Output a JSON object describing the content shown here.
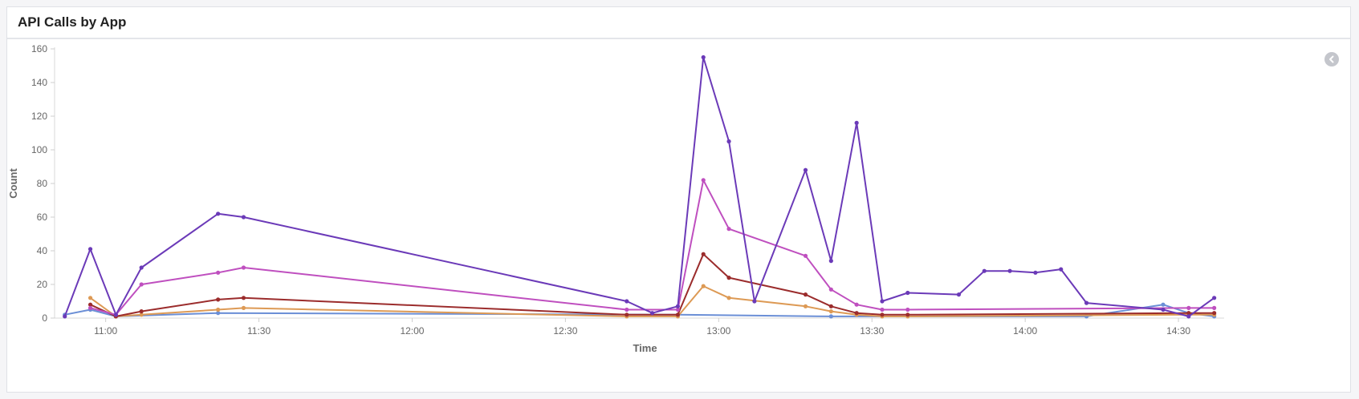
{
  "panel": {
    "title": "API Calls by App"
  },
  "icons": {
    "collapse": "chevron-left-icon"
  },
  "chart_data": {
    "type": "line",
    "xlabel": "Time",
    "ylabel": "Count",
    "ylim": [
      0,
      160
    ],
    "yticks": [
      0,
      20,
      40,
      60,
      80,
      100,
      120,
      140,
      160
    ],
    "xlim": [
      "10:50",
      "14:38"
    ],
    "xticks": [
      "11:00",
      "11:30",
      "12:00",
      "12:30",
      "13:00",
      "13:30",
      "14:00",
      "14:30"
    ],
    "grid": false,
    "legend": "none",
    "series": [
      {
        "color": "#6b3ab8",
        "points": [
          [
            "10:52",
            1
          ],
          [
            "10:57",
            41
          ],
          [
            "11:02",
            2
          ],
          [
            "11:07",
            30
          ],
          [
            "11:22",
            62
          ],
          [
            "11:27",
            60
          ],
          [
            "12:42",
            10
          ],
          [
            "12:47",
            3
          ],
          [
            "12:52",
            7
          ],
          [
            "12:57",
            155
          ],
          [
            "13:02",
            105
          ],
          [
            "13:07",
            10
          ],
          [
            "13:17",
            88
          ],
          [
            "13:22",
            34
          ],
          [
            "13:27",
            116
          ],
          [
            "13:32",
            10
          ],
          [
            "13:37",
            15
          ],
          [
            "13:47",
            14
          ],
          [
            "13:52",
            28
          ],
          [
            "13:57",
            28
          ],
          [
            "14:02",
            27
          ],
          [
            "14:07",
            29
          ],
          [
            "14:12",
            9
          ],
          [
            "14:27",
            5
          ],
          [
            "14:32",
            1
          ],
          [
            "14:37",
            12
          ]
        ]
      },
      {
        "color": "#bf4fbf",
        "points": [
          [
            "10:57",
            6
          ],
          [
            "11:02",
            2
          ],
          [
            "11:07",
            20
          ],
          [
            "11:22",
            27
          ],
          [
            "11:27",
            30
          ],
          [
            "12:42",
            5
          ],
          [
            "12:52",
            5
          ],
          [
            "12:57",
            82
          ],
          [
            "13:02",
            53
          ],
          [
            "13:17",
            37
          ],
          [
            "13:22",
            17
          ],
          [
            "13:27",
            8
          ],
          [
            "13:32",
            5
          ],
          [
            "13:37",
            5
          ],
          [
            "14:32",
            6
          ],
          [
            "14:37",
            6
          ]
        ]
      },
      {
        "color": "#9b2c2c",
        "points": [
          [
            "10:57",
            8
          ],
          [
            "11:02",
            1
          ],
          [
            "11:07",
            4
          ],
          [
            "11:22",
            11
          ],
          [
            "11:27",
            12
          ],
          [
            "12:42",
            2
          ],
          [
            "12:52",
            2
          ],
          [
            "12:57",
            38
          ],
          [
            "13:02",
            24
          ],
          [
            "13:17",
            14
          ],
          [
            "13:22",
            7
          ],
          [
            "13:27",
            3
          ],
          [
            "13:32",
            2
          ],
          [
            "13:37",
            2
          ],
          [
            "14:32",
            3
          ],
          [
            "14:37",
            3
          ]
        ]
      },
      {
        "color": "#dd9a55",
        "points": [
          [
            "10:57",
            12
          ],
          [
            "11:02",
            1
          ],
          [
            "11:07",
            2
          ],
          [
            "11:22",
            5
          ],
          [
            "11:27",
            6
          ],
          [
            "12:42",
            1
          ],
          [
            "12:52",
            1
          ],
          [
            "12:57",
            19
          ],
          [
            "13:02",
            12
          ],
          [
            "13:17",
            7
          ],
          [
            "13:22",
            4
          ],
          [
            "13:27",
            2
          ],
          [
            "13:32",
            1
          ],
          [
            "13:37",
            1
          ],
          [
            "14:32",
            2
          ],
          [
            "14:37",
            2
          ]
        ]
      },
      {
        "color": "#6b8fd6",
        "points": [
          [
            "10:52",
            2
          ],
          [
            "10:57",
            5
          ],
          [
            "11:02",
            1
          ],
          [
            "11:22",
            3
          ],
          [
            "12:52",
            2
          ],
          [
            "13:22",
            1
          ],
          [
            "14:12",
            1
          ],
          [
            "14:27",
            8
          ],
          [
            "14:32",
            3
          ],
          [
            "14:37",
            1
          ]
        ]
      }
    ]
  }
}
